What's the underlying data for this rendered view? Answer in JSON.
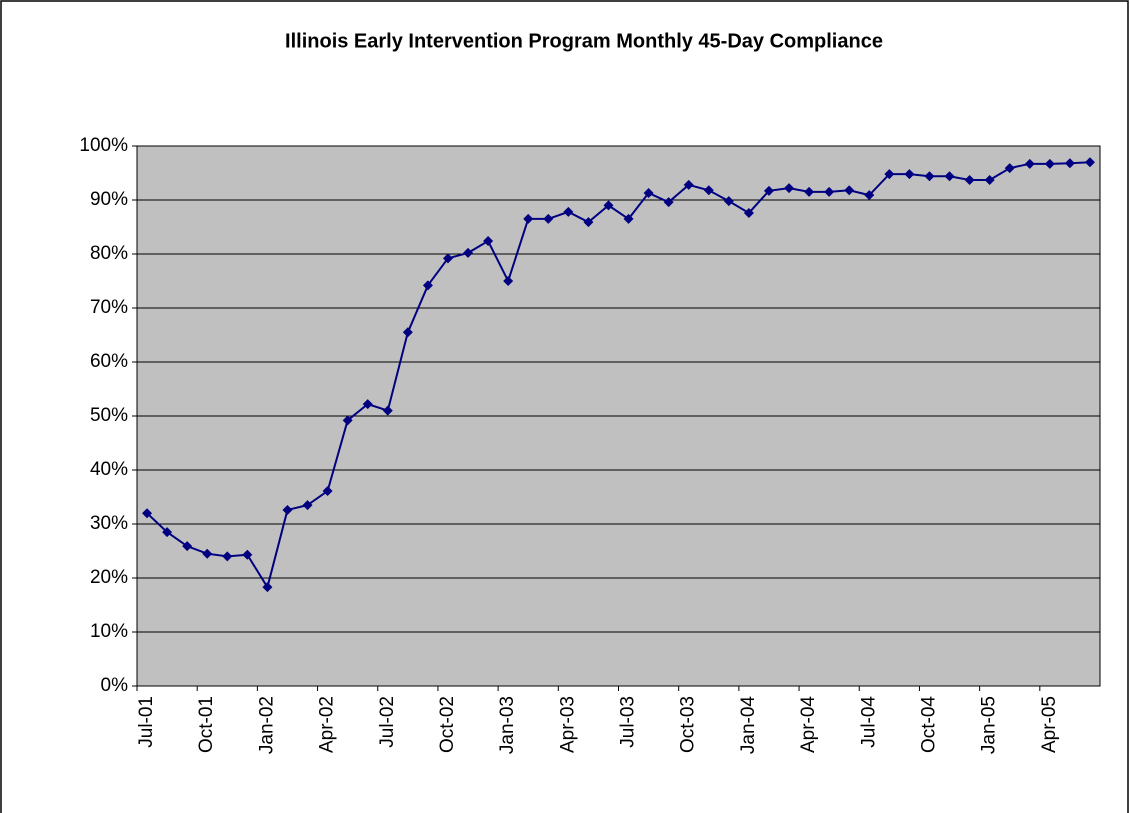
{
  "chart_data": {
    "type": "line",
    "title": "Illinois Early Intervention Program Monthly 45-Day Compliance",
    "categories": [
      "Jul-01",
      null,
      null,
      "Oct-01",
      null,
      null,
      "Jan-02",
      null,
      null,
      "Apr-02",
      null,
      null,
      "Jul-02",
      null,
      null,
      "Oct-02",
      null,
      null,
      "Jan-03",
      null,
      null,
      "Apr-03",
      null,
      null,
      "Jul-03",
      null,
      null,
      "Oct-03",
      null,
      null,
      "Jan-04",
      null,
      null,
      "Apr-04",
      null,
      null,
      "Jul-04",
      null,
      null,
      "Oct-04",
      null,
      null,
      "Jan-05",
      null,
      null,
      "Apr-05",
      null,
      null
    ],
    "values": [
      32,
      28.5,
      25.9,
      24.5,
      24,
      24.3,
      18.3,
      32.6,
      33.5,
      36.1,
      49.2,
      52.2,
      51,
      65.5,
      74.2,
      79.2,
      80.2,
      82.4,
      75,
      86.5,
      86.5,
      87.8,
      85.9,
      89,
      86.5,
      91.3,
      89.6,
      92.8,
      91.8,
      89.8,
      87.6,
      91.7,
      92.2,
      91.5,
      91.5,
      91.8,
      90.9,
      94.8,
      94.8,
      94.4,
      94.4,
      93.7,
      93.7,
      95.9,
      96.7,
      96.7,
      96.8,
      97
    ],
    "color": "#000080",
    "ylim": [
      0,
      100
    ],
    "yticks": [
      {
        "value": 0,
        "label": "0%"
      },
      {
        "value": 10,
        "label": "10%"
      },
      {
        "value": 20,
        "label": "20%"
      },
      {
        "value": 30,
        "label": "30%"
      },
      {
        "value": 40,
        "label": "40%"
      },
      {
        "value": 50,
        "label": "50%"
      },
      {
        "value": 60,
        "label": "60%"
      },
      {
        "value": 70,
        "label": "70%"
      },
      {
        "value": 80,
        "label": "80%"
      },
      {
        "value": 90,
        "label": "90%"
      },
      {
        "value": 100,
        "label": "100%"
      }
    ],
    "grid": true
  }
}
